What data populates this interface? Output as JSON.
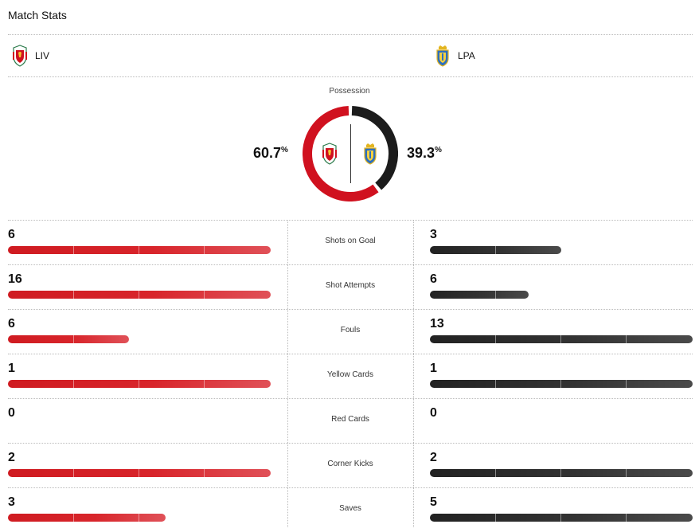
{
  "title": "Match Stats",
  "home": {
    "abbr": "LIV",
    "possession": "60.7",
    "color": "#d0111f"
  },
  "away": {
    "abbr": "LPA",
    "possession": "39.3",
    "color": "#1c1c1c"
  },
  "possession_label": "Possession",
  "percent_sign": "%",
  "stats": [
    {
      "label": "Shots on Goal",
      "home": "6",
      "away": "3",
      "home_frac": 1.0,
      "away_frac": 0.5
    },
    {
      "label": "Shot Attempts",
      "home": "16",
      "away": "6",
      "home_frac": 1.0,
      "away_frac": 0.375
    },
    {
      "label": "Fouls",
      "home": "6",
      "away": "13",
      "home_frac": 0.4615,
      "away_frac": 1.0
    },
    {
      "label": "Yellow Cards",
      "home": "1",
      "away": "1",
      "home_frac": 1.0,
      "away_frac": 1.0
    },
    {
      "label": "Red Cards",
      "home": "0",
      "away": "0",
      "home_frac": 0,
      "away_frac": 0
    },
    {
      "label": "Corner Kicks",
      "home": "2",
      "away": "2",
      "home_frac": 1.0,
      "away_frac": 1.0
    },
    {
      "label": "Saves",
      "home": "3",
      "away": "5",
      "home_frac": 0.6,
      "away_frac": 1.0
    }
  ]
}
